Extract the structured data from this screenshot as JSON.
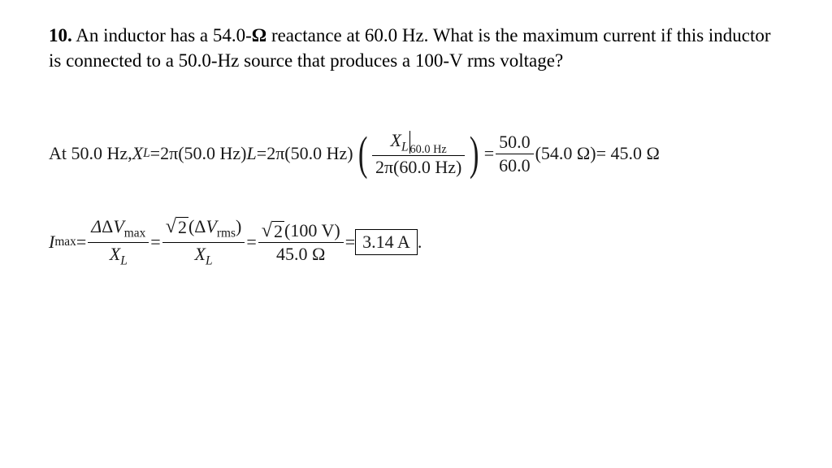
{
  "text_color": "#000000",
  "background_color": "#ffffff",
  "font_family": "Times New Roman",
  "problem": {
    "number": "10.",
    "text_before_omega": " An inductor has a 54.0-",
    "omega": "Ω",
    "text_after_omega": " reactance at 60.0 Hz. What is the maximum current if this inductor is connected to a 50.0-Hz source that produces a 100-V rms voltage?"
  },
  "line1": {
    "prefix": "At 50.0 Hz,  ",
    "XL": "X",
    "Lsub": "L",
    "eq": " = ",
    "twopi1": "2π",
    "freq1": "(50.0 Hz)",
    "Lvar": "L",
    "twopi2": "2π",
    "freq2": "(50.0 Hz)",
    "inner_num_X": "X",
    "inner_num_Lsub": "L",
    "inner_num_eval": "60.0 Hz",
    "inner_den": "2π(60.0 Hz)",
    "ratio_num": "50.0",
    "ratio_den": "60.0",
    "reactance_known": "(54.0 Ω)",
    "result": " = 45.0 Ω"
  },
  "line2": {
    "I": "I",
    "max": "max",
    "eq": " = ",
    "f1_num_dv": "ΔV",
    "f1_num_sub": "max",
    "f1_den_X": "X",
    "f1_den_L": "L",
    "f2_num_sqrt": "2",
    "f2_num_dv": "(ΔV",
    "f2_num_sub": "rms",
    "f2_num_close": ")",
    "f2_den_X": "X",
    "f2_den_L": "L",
    "f3_num_sqrt": "2",
    "f3_num_val": "(100 V)",
    "f3_den": "45.0 Ω",
    "answer": "3.14 A",
    "period": " ."
  }
}
